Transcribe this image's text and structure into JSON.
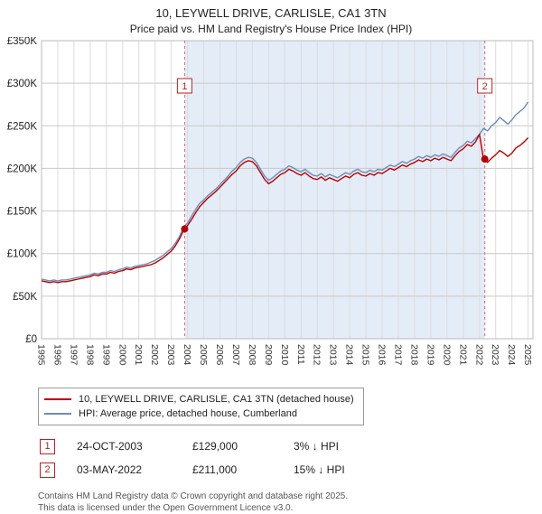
{
  "title": "10, LEYWELL DRIVE, CARLISLE, CA1 3TN",
  "subtitle": "Price paid vs. HM Land Registry's House Price Index (HPI)",
  "legend": {
    "items": [
      {
        "label": "10, LEYWELL DRIVE, CARLISLE, CA1 3TN (detached house)",
        "color": "#bb0000"
      },
      {
        "label": "HPI: Average price, detached house, Cumberland",
        "color": "#6b8cba"
      }
    ]
  },
  "transactions": [
    {
      "marker": "1",
      "date": "24-OCT-2003",
      "price": "£129,000",
      "hpi_diff": "3% ↓ HPI"
    },
    {
      "marker": "2",
      "date": "03-MAY-2022",
      "price": "£211,000",
      "hpi_diff": "15% ↓ HPI"
    }
  ],
  "footer": {
    "line1": "Contains HM Land Registry data © Crown copyright and database right 2025.",
    "line2": "This data is licensed under the Open Government Licence v3.0."
  },
  "chart_data": {
    "type": "line",
    "title": "10, LEYWELL DRIVE, CARLISLE, CA1 3TN",
    "subtitle": "Price paid vs. HM Land Registry's House Price Index (HPI)",
    "xlabel": "",
    "ylabel": "",
    "xlim": [
      1995,
      2025.3
    ],
    "ylim": [
      0,
      350000
    ],
    "y_ticks": [
      0,
      50000,
      100000,
      150000,
      200000,
      250000,
      300000,
      350000
    ],
    "y_tick_labels": [
      "£0",
      "£50K",
      "£100K",
      "£150K",
      "£200K",
      "£250K",
      "£300K",
      "£350K"
    ],
    "x_ticks": [
      1995,
      1996,
      1997,
      1998,
      1999,
      2000,
      2001,
      2002,
      2003,
      2004,
      2005,
      2006,
      2007,
      2008,
      2009,
      2010,
      2011,
      2012,
      2013,
      2014,
      2015,
      2016,
      2017,
      2018,
      2019,
      2020,
      2021,
      2022,
      2023,
      2024,
      2025
    ],
    "grid": true,
    "legend_position": "below",
    "shade_color": "#e4ecf7",
    "shaded_region": [
      2003.82,
      2022.33
    ],
    "marker_label_y": 297000,
    "markers": [
      {
        "label": "1",
        "x": 2003.82,
        "y": 129000
      },
      {
        "label": "2",
        "x": 2022.33,
        "y": 211000
      }
    ],
    "series": [
      {
        "name": "10, LEYWELL DRIVE, CARLISLE, CA1 3TN (detached house)",
        "color": "#bb0000",
        "x_start": 1995,
        "x_step": 0.25,
        "values": [
          68000,
          67000,
          66000,
          67000,
          66000,
          67000,
          67000,
          68000,
          69000,
          70000,
          71000,
          72000,
          73000,
          75000,
          74000,
          76000,
          76000,
          78000,
          77000,
          79000,
          80000,
          82000,
          81000,
          83000,
          84000,
          85000,
          86000,
          87000,
          89000,
          92000,
          95000,
          99000,
          103000,
          109000,
          117000,
          127000,
          133000,
          140000,
          148000,
          155000,
          160000,
          165000,
          169000,
          173000,
          178000,
          183000,
          188000,
          193000,
          197000,
          203000,
          207000,
          209000,
          208000,
          203000,
          195000,
          187000,
          182000,
          185000,
          189000,
          193000,
          195000,
          199000,
          197000,
          194000,
          192000,
          195000,
          191000,
          188000,
          187000,
          190000,
          186000,
          189000,
          187000,
          185000,
          188000,
          191000,
          189000,
          193000,
          195000,
          192000,
          191000,
          194000,
          192000,
          195000,
          194000,
          197000,
          200000,
          198000,
          201000,
          204000,
          202000,
          205000,
          207000,
          210000,
          208000,
          211000,
          209000,
          212000,
          210000,
          213000,
          211000,
          209000,
          215000,
          220000,
          223000,
          228000,
          226000,
          231000,
          240000,
          211000,
          207000,
          212000,
          216000,
          221000,
          218000,
          214000,
          218000,
          224000,
          227000,
          231000,
          236000
        ]
      },
      {
        "name": "HPI: Average price, detached house, Cumberland",
        "color": "#6b8cba",
        "x_start": 1995,
        "x_step": 0.25,
        "values": [
          70000,
          69000,
          68000,
          69000,
          68000,
          69000,
          69000,
          70000,
          71000,
          72000,
          73000,
          74000,
          75000,
          77000,
          76000,
          78000,
          78000,
          80000,
          79000,
          81000,
          82000,
          84000,
          83000,
          85000,
          86000,
          87000,
          88000,
          90000,
          92000,
          95000,
          98000,
          102000,
          106000,
          112000,
          120000,
          131000,
          136000,
          144000,
          152000,
          159000,
          163000,
          168000,
          172000,
          176000,
          181000,
          186000,
          191000,
          197000,
          201000,
          207000,
          211000,
          213000,
          212000,
          207000,
          199000,
          191000,
          186000,
          189000,
          193000,
          197000,
          199000,
          203000,
          201000,
          198000,
          196000,
          199000,
          195000,
          192000,
          191000,
          194000,
          190000,
          193000,
          191000,
          189000,
          192000,
          195000,
          193000,
          197000,
          199000,
          196000,
          195000,
          198000,
          196000,
          199000,
          198000,
          201000,
          204000,
          202000,
          205000,
          208000,
          206000,
          209000,
          211000,
          214000,
          212000,
          215000,
          213000,
          216000,
          214000,
          217000,
          215000,
          213000,
          219000,
          224000,
          227000,
          232000,
          230000,
          235000,
          240000,
          247000,
          244000,
          250000,
          254000,
          260000,
          256000,
          252000,
          257000,
          263000,
          267000,
          271000,
          278000
        ]
      }
    ]
  }
}
